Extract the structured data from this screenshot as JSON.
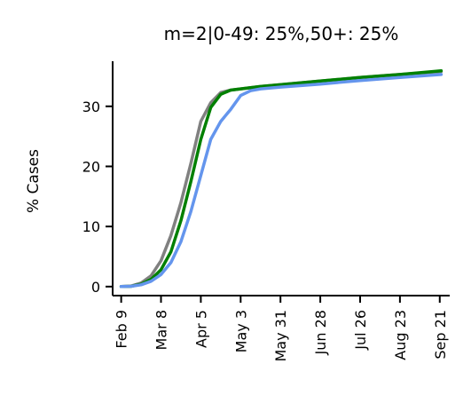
{
  "chart_data": {
    "type": "line",
    "title": "m=2|0-49: 25%,50+: 25%",
    "xlabel": "",
    "ylabel": "% Cases",
    "x_ticks": [
      "Feb 9",
      "Mar 8",
      "Apr 5",
      "May 3",
      "May 31",
      "Jun 28",
      "Jul 26",
      "Aug 23",
      "Sep 21"
    ],
    "y_ticks": [
      0,
      10,
      20,
      30
    ],
    "ylim": [
      -1.5,
      37.5
    ],
    "xlim": [
      "2020-02-03",
      "2020-09-27"
    ],
    "grid": false,
    "legend": "none",
    "series": [
      {
        "color": "#808080",
        "x": [
          "2020-02-09",
          "2020-02-16",
          "2020-02-23",
          "2020-03-01",
          "2020-03-08",
          "2020-03-15",
          "2020-03-22",
          "2020-03-29",
          "2020-04-05",
          "2020-04-12",
          "2020-04-19",
          "2020-04-26",
          "2020-05-03",
          "2020-05-10",
          "2020-05-17",
          "2020-05-31",
          "2020-06-28",
          "2020-07-26",
          "2020-08-23",
          "2020-09-21"
        ],
        "values": [
          0,
          0.1,
          0.6,
          1.8,
          4.3,
          8.5,
          14.0,
          20.5,
          27.5,
          30.6,
          32.3,
          32.7,
          32.9,
          33.1,
          33.3,
          33.6,
          34.2,
          34.8,
          35.3,
          35.8
        ]
      },
      {
        "color": "#008000",
        "x": [
          "2020-02-09",
          "2020-02-16",
          "2020-02-23",
          "2020-03-01",
          "2020-03-08",
          "2020-03-15",
          "2020-03-22",
          "2020-03-29",
          "2020-04-05",
          "2020-04-12",
          "2020-04-19",
          "2020-04-26",
          "2020-05-03",
          "2020-05-10",
          "2020-05-17",
          "2020-05-31",
          "2020-06-28",
          "2020-07-26",
          "2020-08-23",
          "2020-09-21"
        ],
        "values": [
          0,
          0.05,
          0.4,
          1.2,
          2.8,
          5.8,
          11.0,
          17.5,
          24.5,
          29.8,
          32.0,
          32.7,
          32.9,
          33.1,
          33.3,
          33.6,
          34.2,
          34.8,
          35.3,
          35.9
        ]
      },
      {
        "color": "#6495ED",
        "x": [
          "2020-02-09",
          "2020-02-16",
          "2020-02-23",
          "2020-03-01",
          "2020-03-08",
          "2020-03-15",
          "2020-03-22",
          "2020-03-29",
          "2020-04-05",
          "2020-04-12",
          "2020-04-19",
          "2020-04-26",
          "2020-05-03",
          "2020-05-10",
          "2020-05-17",
          "2020-05-31",
          "2020-06-28",
          "2020-07-26",
          "2020-08-23",
          "2020-09-21"
        ],
        "values": [
          0,
          0.05,
          0.3,
          0.9,
          2.0,
          4.0,
          7.5,
          12.5,
          18.5,
          24.5,
          27.5,
          29.5,
          31.8,
          32.6,
          32.9,
          33.2,
          33.7,
          34.3,
          34.8,
          35.3
        ]
      }
    ]
  }
}
